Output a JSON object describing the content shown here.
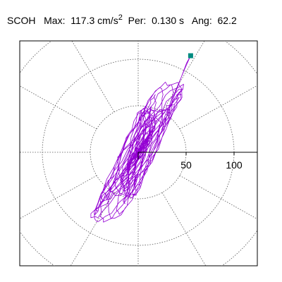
{
  "header": {
    "station": "SCOH",
    "max_label": "Max:",
    "max_value": "117.3",
    "max_unit": "cm/s",
    "max_unit_exponent": "2",
    "period_label": "Per:",
    "period_value": "0.130 s",
    "angle_label": "Ang:",
    "angle_value": "62.2"
  },
  "chart_data": {
    "type": "scatter",
    "subtype": "polar particle-motion hodogram",
    "units": "cm/s^2",
    "r_ticks": [
      50,
      100
    ],
    "r_tick_labels": [
      "50",
      "100"
    ],
    "ring_radii": [
      50,
      100,
      150
    ],
    "spoke_angles_deg": [
      0,
      30,
      60,
      90,
      120,
      150,
      180,
      210,
      240,
      270,
      300,
      330
    ],
    "grid": true,
    "max_value": 117.3,
    "max_angle_deg": 62.2,
    "trace_color": "#9400d3",
    "max_marker_color": "#008b80",
    "trace_envelope_note": "dense elliptical trace elongated along ~62 deg from East",
    "trace_extent": {
      "x": [
        -60,
        57
      ],
      "y": [
        -90,
        104
      ]
    }
  },
  "colors": {
    "frame": "#000000",
    "grid": "#555555"
  }
}
